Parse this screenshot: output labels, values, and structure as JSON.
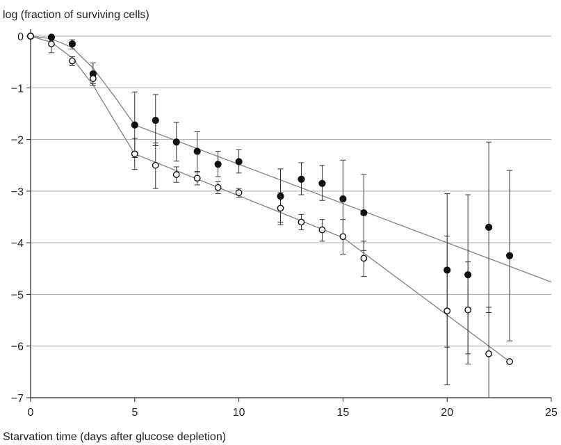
{
  "chart_data": {
    "type": "scatter",
    "xlabel": "Starvation time (days after glucose depletion)",
    "ylabel": "log (fraction of surviving cells)",
    "xlim": [
      0,
      25
    ],
    "ylim": [
      -7,
      0
    ],
    "xticks": [
      0,
      5,
      10,
      15,
      20,
      25
    ],
    "yticks": [
      0,
      -1,
      -2,
      -3,
      -4,
      -5,
      -6,
      -7
    ],
    "ytick_labels": [
      "0",
      "−1",
      "−2",
      "−3",
      "−4",
      "−5",
      "−6",
      "−7"
    ],
    "grid": "horizontal",
    "colors": {
      "line": "#888888",
      "marker": "#111111",
      "grid": "#aaaaaa",
      "axis": "#222222"
    },
    "series": [
      {
        "marker": "filled-circle",
        "points": [
          {
            "x": 0,
            "y": 0,
            "lo": 0,
            "hi": 0
          },
          {
            "x": 1,
            "y": -0.02,
            "lo": -0.08,
            "hi": 0.02
          },
          {
            "x": 2,
            "y": -0.15,
            "lo": -0.25,
            "hi": -0.07
          },
          {
            "x": 3,
            "y": -0.73,
            "lo": -0.92,
            "hi": -0.52
          },
          {
            "x": 5,
            "y": -1.72,
            "lo": -2.35,
            "hi": -1.08
          },
          {
            "x": 6,
            "y": -1.63,
            "lo": -2.12,
            "hi": -1.13
          },
          {
            "x": 7,
            "y": -2.05,
            "lo": -2.42,
            "hi": -1.67
          },
          {
            "x": 8,
            "y": -2.23,
            "lo": -2.62,
            "hi": -1.85
          },
          {
            "x": 9,
            "y": -2.48,
            "lo": -2.72,
            "hi": -2.23
          },
          {
            "x": 10,
            "y": -2.43,
            "lo": -2.65,
            "hi": -2.2
          },
          {
            "x": 12,
            "y": -3.1,
            "lo": -3.6,
            "hi": -2.57
          },
          {
            "x": 13,
            "y": -2.77,
            "lo": -3.07,
            "hi": -2.45
          },
          {
            "x": 14,
            "y": -2.85,
            "lo": -3.18,
            "hi": -2.5
          },
          {
            "x": 15,
            "y": -3.15,
            "lo": -3.88,
            "hi": -2.4
          },
          {
            "x": 16,
            "y": -3.42,
            "lo": -4.15,
            "hi": -2.68
          },
          {
            "x": 20,
            "y": -4.53,
            "lo": -6.02,
            "hi": -3.05
          },
          {
            "x": 21,
            "y": -4.62,
            "lo": -6.15,
            "hi": -3.07
          },
          {
            "x": 22,
            "y": -3.7,
            "lo": -5.35,
            "hi": -2.05
          },
          {
            "x": 23,
            "y": -4.25,
            "lo": -5.9,
            "hi": -2.6
          }
        ],
        "fit": [
          [
            0,
            0
          ],
          [
            1,
            -0.05
          ],
          [
            2,
            -0.22
          ],
          [
            3,
            -0.62
          ],
          [
            4,
            -1.15
          ],
          [
            5,
            -1.72
          ],
          [
            25,
            -4.76
          ]
        ]
      },
      {
        "marker": "open-circle",
        "points": [
          {
            "x": 0,
            "y": 0,
            "lo": 0,
            "hi": 0
          },
          {
            "x": 1,
            "y": -0.15,
            "lo": -0.32,
            "hi": 0
          },
          {
            "x": 2,
            "y": -0.48,
            "lo": -0.57,
            "hi": -0.4
          },
          {
            "x": 3,
            "y": -0.82,
            "lo": -0.95,
            "hi": -0.7
          },
          {
            "x": 5,
            "y": -2.28,
            "lo": -2.58,
            "hi": -1.98
          },
          {
            "x": 6,
            "y": -2.5,
            "lo": -2.95,
            "hi": -2.07
          },
          {
            "x": 7,
            "y": -2.68,
            "lo": -2.83,
            "hi": -2.53
          },
          {
            "x": 8,
            "y": -2.75,
            "lo": -2.88,
            "hi": -2.63
          },
          {
            "x": 9,
            "y": -2.93,
            "lo": -3.05,
            "hi": -2.82
          },
          {
            "x": 10,
            "y": -3.03,
            "lo": -3.12,
            "hi": -2.95
          },
          {
            "x": 12,
            "y": -3.33,
            "lo": -3.65,
            "hi": -3.03
          },
          {
            "x": 13,
            "y": -3.6,
            "lo": -3.75,
            "hi": -3.45
          },
          {
            "x": 14,
            "y": -3.75,
            "lo": -3.97,
            "hi": -3.55
          },
          {
            "x": 15,
            "y": -3.88,
            "lo": -4.22,
            "hi": -3.55
          },
          {
            "x": 16,
            "y": -4.3,
            "lo": -4.65,
            "hi": -3.97
          },
          {
            "x": 20,
            "y": -5.32,
            "lo": -6.75,
            "hi": -3.87
          },
          {
            "x": 21,
            "y": -5.3,
            "lo": -6.35,
            "hi": -4.37
          },
          {
            "x": 22,
            "y": -6.15,
            "lo": -7.0,
            "hi": -5.25
          },
          {
            "x": 23,
            "y": -6.3,
            "lo": -6.3,
            "hi": -6.3
          }
        ],
        "fit": [
          [
            0,
            0
          ],
          [
            1,
            -0.12
          ],
          [
            2,
            -0.42
          ],
          [
            3,
            -0.95
          ],
          [
            4,
            -1.62
          ],
          [
            5,
            -2.28
          ],
          [
            15,
            -3.9
          ],
          [
            23,
            -6.3
          ]
        ]
      }
    ]
  }
}
